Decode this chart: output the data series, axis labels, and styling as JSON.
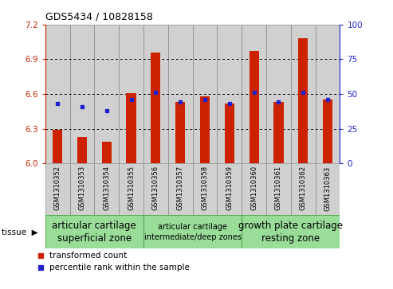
{
  "title": "GDS5434 / 10828158",
  "samples": [
    "GSM1310352",
    "GSM1310353",
    "GSM1310354",
    "GSM1310355",
    "GSM1310356",
    "GSM1310357",
    "GSM1310358",
    "GSM1310359",
    "GSM1310360",
    "GSM1310361",
    "GSM1310362",
    "GSM1310363"
  ],
  "red_values": [
    6.29,
    6.23,
    6.19,
    6.61,
    6.96,
    6.53,
    6.58,
    6.52,
    6.97,
    6.53,
    7.08,
    6.55
  ],
  "blue_values": [
    43,
    41,
    38,
    46,
    51,
    44,
    46,
    43,
    51,
    44,
    51,
    46
  ],
  "ymin": 6.0,
  "ymax": 7.2,
  "yticks": [
    6.0,
    6.3,
    6.6,
    6.9,
    7.2
  ],
  "y2min": 0,
  "y2max": 100,
  "y2ticks": [
    0,
    25,
    50,
    75,
    100
  ],
  "red_color": "#cc2200",
  "blue_color": "#2222cc",
  "bar_bg": "#d0d0d0",
  "bar_border": "#888888",
  "groups": [
    {
      "label": "articular cartilage\nsuperficial zone",
      "start": 0,
      "end": 4,
      "fontsize": 8.5
    },
    {
      "label": "articular cartilage\nintermediate/deep zones",
      "start": 4,
      "end": 8,
      "fontsize": 7.0
    },
    {
      "label": "growth plate cartilage\nresting zone",
      "start": 8,
      "end": 12,
      "fontsize": 8.5
    }
  ],
  "group_color": "#99dd99",
  "group_border": "#55aa55",
  "legend_red": "transformed count",
  "legend_blue": "percentile rank within the sample",
  "tissue_label": "tissue"
}
